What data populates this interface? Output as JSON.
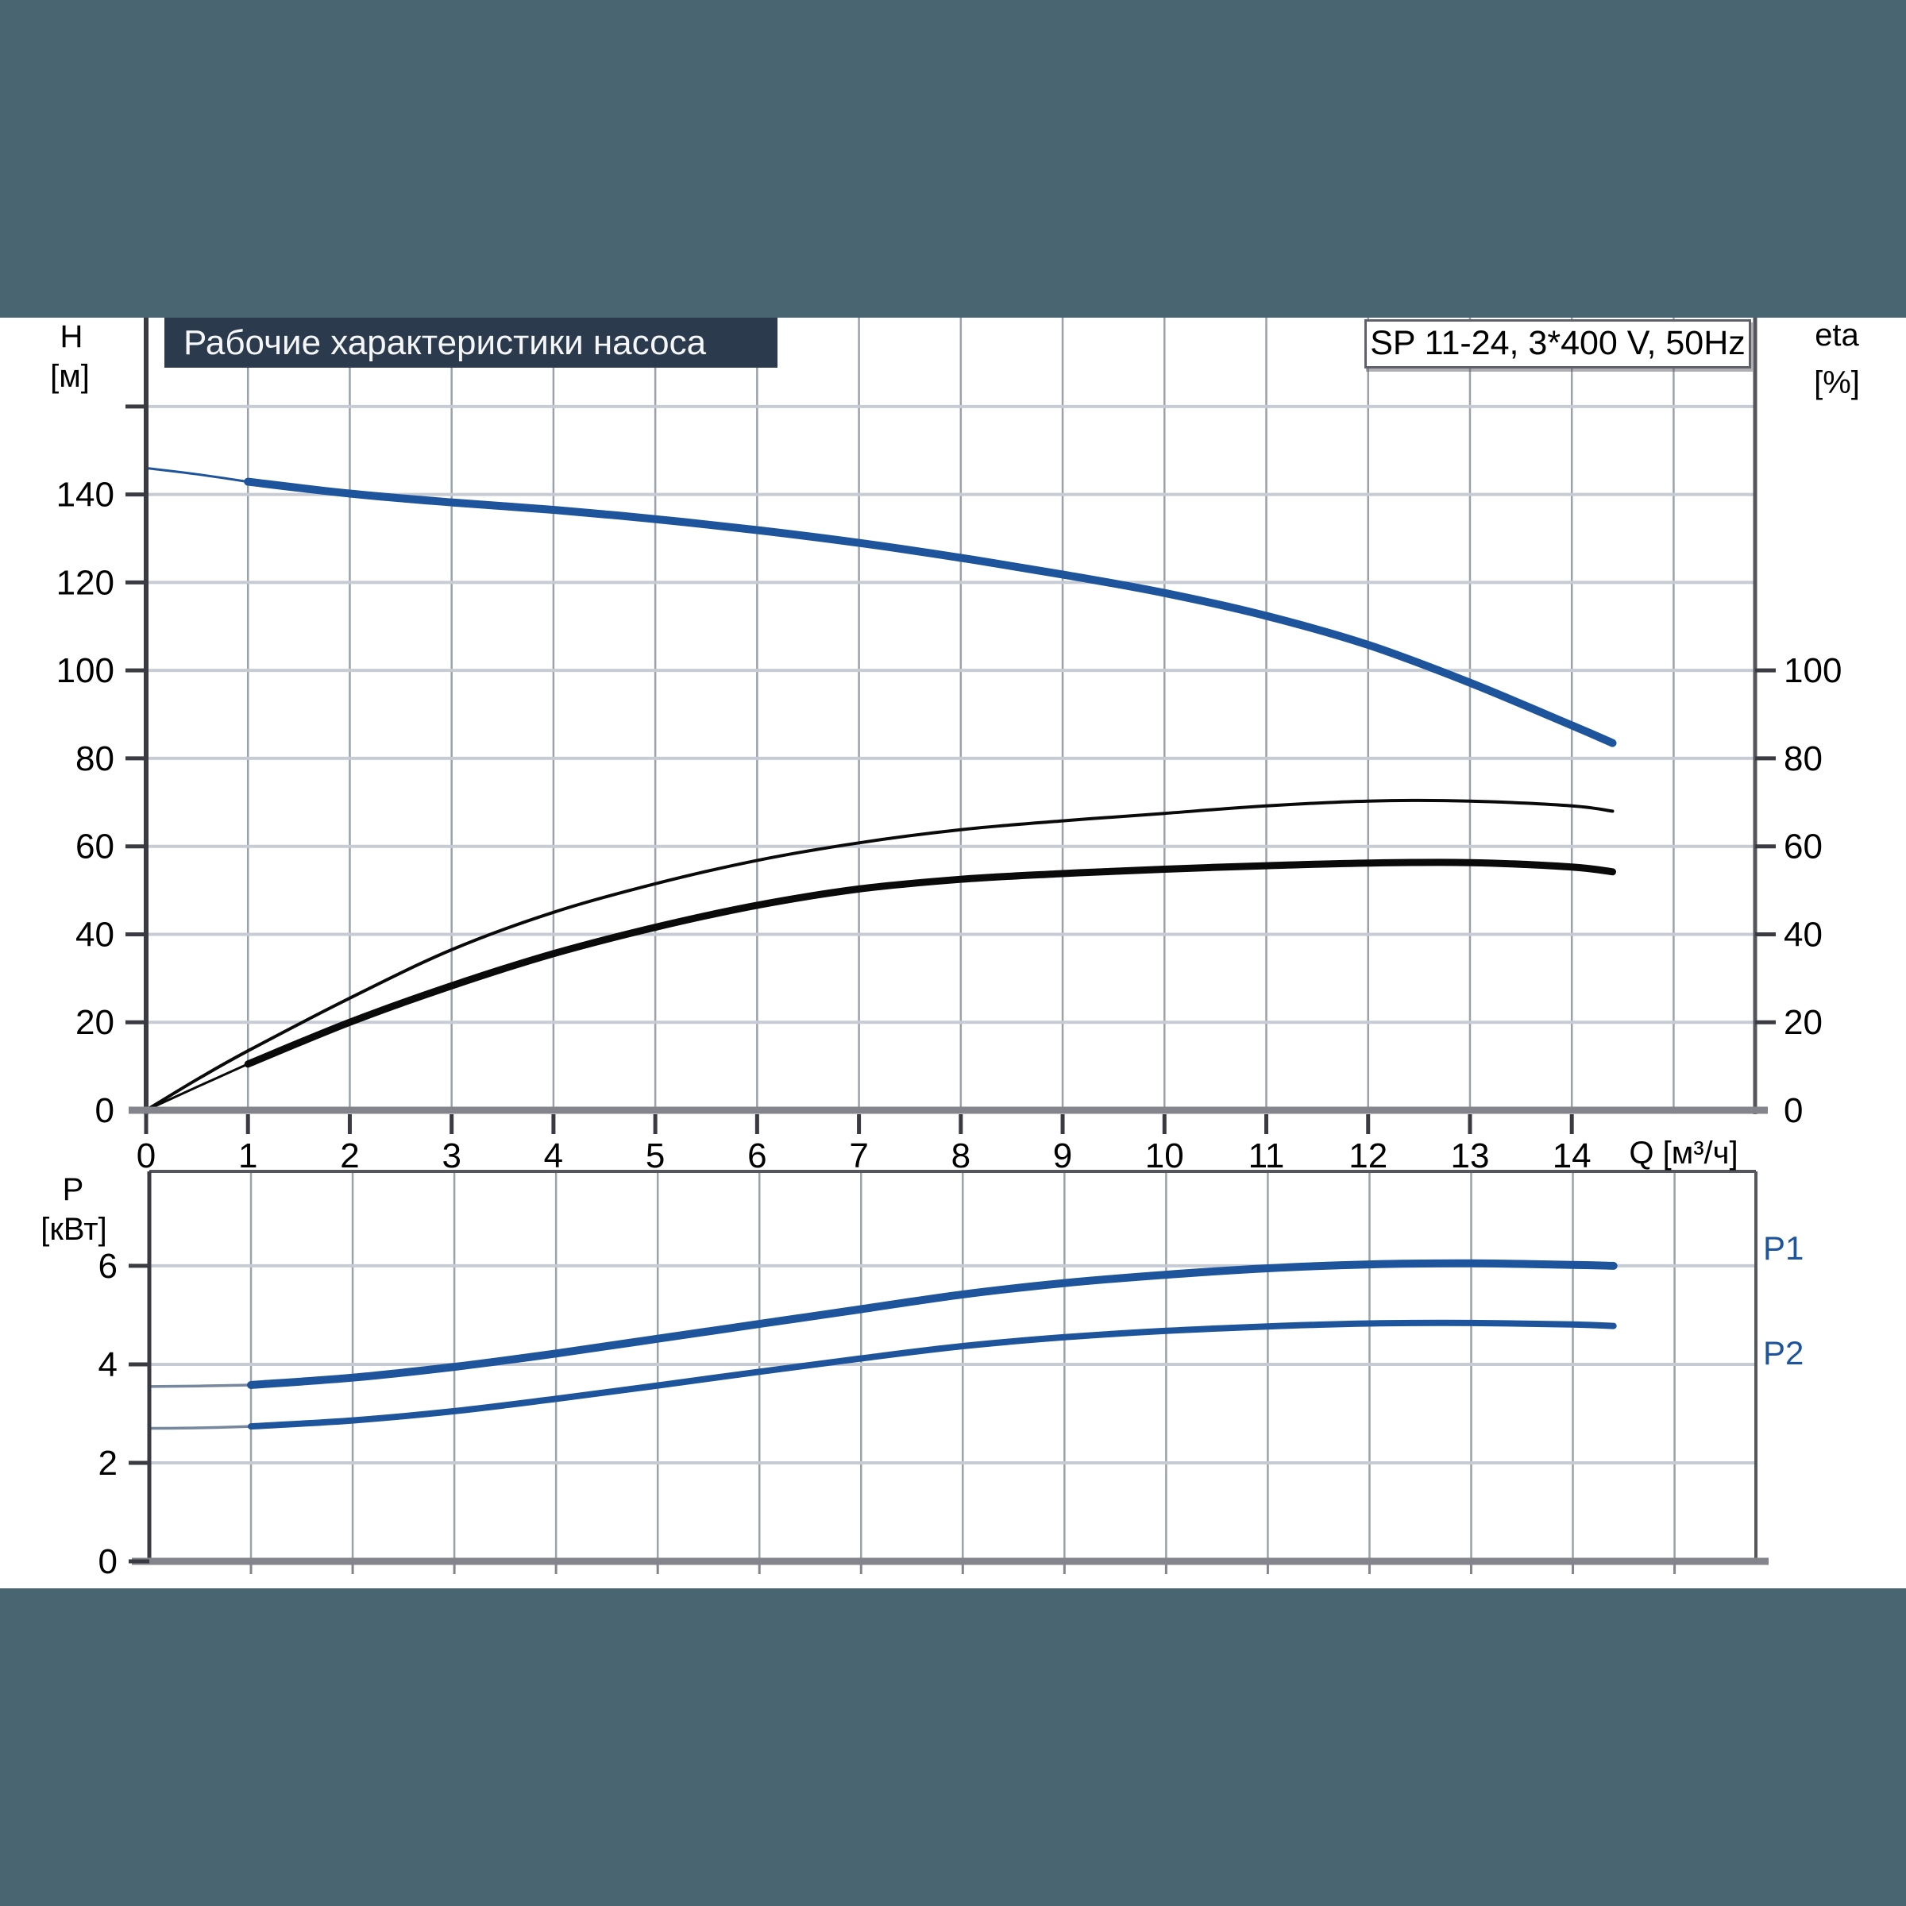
{
  "header": {
    "title": "Рабочие характеристики насоса",
    "pump_type": "SP 11-24, 3*400 V, 50Hz"
  },
  "colors": {
    "band": "#496571",
    "title_bg": "#2b3a4c",
    "curve_blue": "#1e549c",
    "curve_black": "#0a0a0a",
    "lead_gray": "#76879e"
  },
  "axes": {
    "head_symbol": "H",
    "head_unit": "[м]",
    "eta_symbol": "eta",
    "eta_unit": "[%]",
    "flow_label": "Q [м³/ч]",
    "power_symbol": "P",
    "power_unit": "[кВт]"
  },
  "curve_labels": {
    "p1": "P1",
    "p2": "P2"
  },
  "chart_data": [
    {
      "type": "line",
      "name": "pump-performance-curves",
      "x_label": "Q [м³/ч]",
      "y_left_label": "H [м]",
      "y_right_label": "eta [%]",
      "xlim": [
        0,
        15.8
      ],
      "ylim_left": [
        0,
        180.2
      ],
      "grid": true,
      "x_ticks": [
        0,
        1,
        2,
        3,
        4,
        5,
        6,
        7,
        8,
        9,
        10,
        11,
        12,
        13,
        14
      ],
      "y_left_ticks": [
        0,
        20,
        40,
        60,
        80,
        100,
        120,
        140
      ],
      "y_right_ticks": [
        0,
        20,
        40,
        60,
        80,
        100
      ],
      "x_gridlines": [
        1,
        2,
        3,
        4,
        5,
        6,
        7,
        8,
        9,
        10,
        11,
        12,
        13,
        14,
        15
      ],
      "y_gridlines": [
        20,
        40,
        60,
        80,
        100,
        120,
        140,
        160
      ],
      "series": [
        {
          "name": "head-curve-lead",
          "color": "#1e549c",
          "width": 3,
          "points": [
            [
              0,
              146
            ],
            [
              0.5,
              144.6
            ],
            [
              1,
              142.9
            ]
          ]
        },
        {
          "name": "head-curve",
          "color": "#1e549c",
          "width": 10,
          "points": [
            [
              1,
              142.9
            ],
            [
              2,
              140.2
            ],
            [
              3,
              138.2
            ],
            [
              4,
              136.5
            ],
            [
              5,
              134.4
            ],
            [
              6,
              131.9
            ],
            [
              7,
              129.0
            ],
            [
              8,
              125.6
            ],
            [
              9,
              121.8
            ],
            [
              10,
              117.6
            ],
            [
              11,
              112.4
            ],
            [
              12,
              105.8
            ],
            [
              13,
              97.2
            ],
            [
              14,
              87.5
            ],
            [
              14.4,
              83.5
            ]
          ]
        },
        {
          "name": "eta-pump-curve",
          "color": "#0a0a0a",
          "width": 4,
          "points": [
            [
              0,
              0
            ],
            [
              0.5,
              7
            ],
            [
              1,
              13.5
            ],
            [
              2,
              25.5
            ],
            [
              3,
              36.5
            ],
            [
              4,
              45
            ],
            [
              5,
              51.5
            ],
            [
              6,
              56.8
            ],
            [
              7,
              60.8
            ],
            [
              8,
              63.8
            ],
            [
              9,
              65.8
            ],
            [
              10,
              67.5
            ],
            [
              11,
              69.2
            ],
            [
              12,
              70.3
            ],
            [
              13,
              70.3
            ],
            [
              14,
              69.2
            ],
            [
              14.4,
              68
            ]
          ]
        },
        {
          "name": "eta-total-curve-lead",
          "color": "#0a0a0a",
          "width": 3,
          "points": [
            [
              0,
              0
            ],
            [
              0.5,
              5.3
            ],
            [
              1,
              10.5
            ]
          ]
        },
        {
          "name": "eta-total-curve",
          "color": "#0a0a0a",
          "width": 9,
          "points": [
            [
              1,
              10.5
            ],
            [
              2,
              20
            ],
            [
              3,
              28.3
            ],
            [
              4,
              35.6
            ],
            [
              5,
              41.6
            ],
            [
              6,
              46.6
            ],
            [
              7,
              50.3
            ],
            [
              8,
              52.5
            ],
            [
              9,
              53.8
            ],
            [
              10,
              54.8
            ],
            [
              11,
              55.6
            ],
            [
              12,
              56.2
            ],
            [
              13,
              56.3
            ],
            [
              14,
              55.3
            ],
            [
              14.4,
              54.2
            ]
          ]
        }
      ]
    },
    {
      "type": "line",
      "name": "power-curves",
      "y_label": "P [кВт]",
      "xlim": [
        0,
        15.8
      ],
      "ylim": [
        0,
        7.95
      ],
      "grid": true,
      "y_ticks": [
        0,
        2,
        4,
        6
      ],
      "x_gridlines": [
        1,
        2,
        3,
        4,
        5,
        6,
        7,
        8,
        9,
        10,
        11,
        12,
        13,
        14,
        15
      ],
      "y_gridlines": [
        2,
        4,
        6
      ],
      "series": [
        {
          "name": "p1-curve-lead",
          "color": "#76879e",
          "width": 3.5,
          "points": [
            [
              0,
              3.55
            ],
            [
              0.5,
              3.56
            ],
            [
              1,
              3.58
            ]
          ]
        },
        {
          "name": "p1-curve",
          "label": "P1",
          "color": "#1e549c",
          "width": 10,
          "points": [
            [
              1,
              3.58
            ],
            [
              2,
              3.73
            ],
            [
              3,
              3.95
            ],
            [
              4,
              4.22
            ],
            [
              5,
              4.52
            ],
            [
              6,
              4.82
            ],
            [
              7,
              5.12
            ],
            [
              8,
              5.42
            ],
            [
              9,
              5.65
            ],
            [
              10,
              5.82
            ],
            [
              11,
              5.95
            ],
            [
              12,
              6.03
            ],
            [
              13,
              6.05
            ],
            [
              14,
              6.02
            ],
            [
              14.4,
              6.0
            ]
          ]
        },
        {
          "name": "p2-curve-lead",
          "color": "#76879e",
          "width": 3.5,
          "points": [
            [
              0,
              2.7
            ],
            [
              0.5,
              2.71
            ],
            [
              1,
              2.74
            ]
          ]
        },
        {
          "name": "p2-curve",
          "label": "P2",
          "color": "#1e549c",
          "width": 8,
          "points": [
            [
              1,
              2.74
            ],
            [
              2,
              2.86
            ],
            [
              3,
              3.05
            ],
            [
              4,
              3.3
            ],
            [
              5,
              3.57
            ],
            [
              6,
              3.85
            ],
            [
              7,
              4.12
            ],
            [
              8,
              4.37
            ],
            [
              9,
              4.55
            ],
            [
              10,
              4.68
            ],
            [
              11,
              4.77
            ],
            [
              12,
              4.83
            ],
            [
              13,
              4.84
            ],
            [
              14,
              4.81
            ],
            [
              14.4,
              4.78
            ]
          ]
        }
      ]
    }
  ]
}
